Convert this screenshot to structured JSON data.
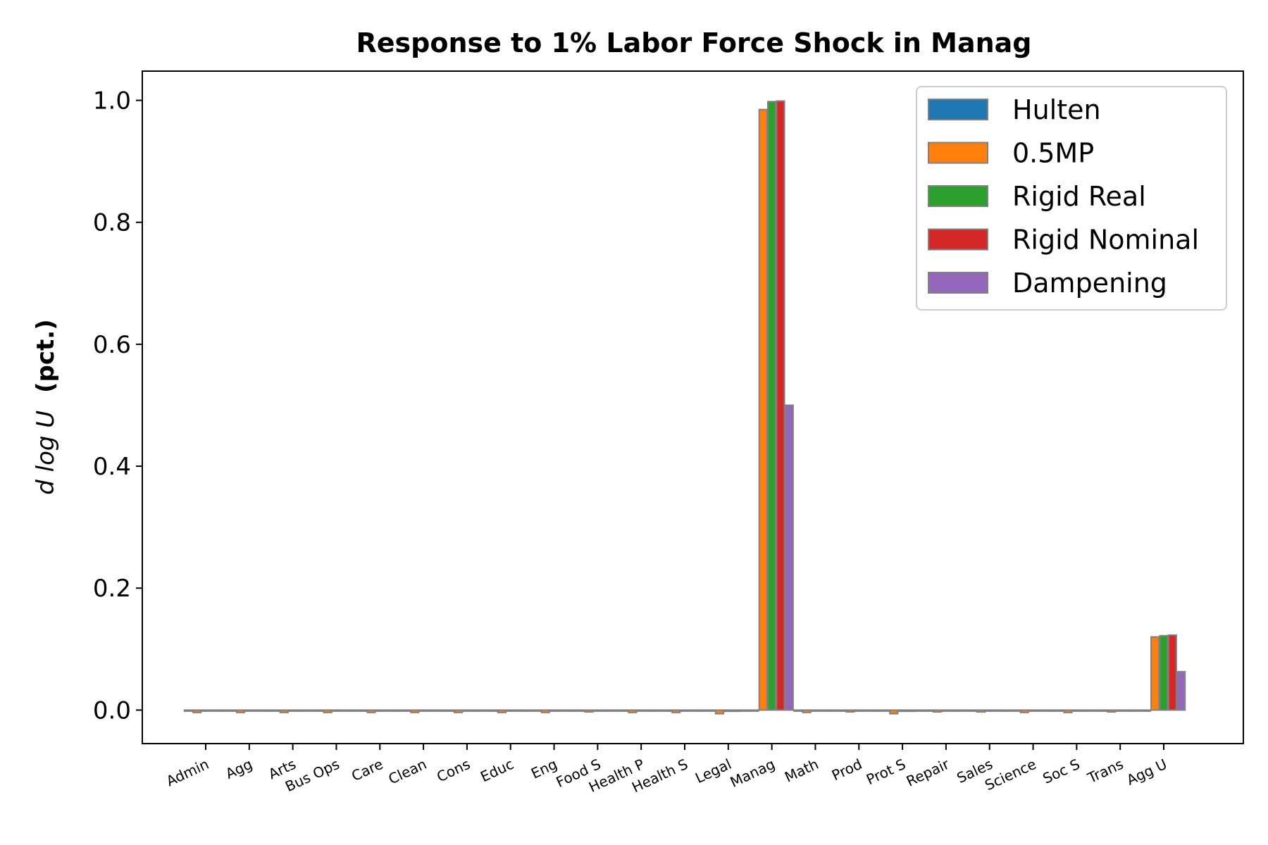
{
  "chart_data": {
    "type": "bar",
    "title": "Response to 1% Labor Force Shock in Manag",
    "ylabel_italic": "d log U",
    "ylabel_bold": "(pct.)",
    "xlabel": "",
    "ylim": [
      -0.055,
      1.048
    ],
    "yticks": [
      0.0,
      0.2,
      0.4,
      0.6,
      0.8,
      1.0
    ],
    "ytick_labels": [
      "0.0",
      "0.2",
      "0.4",
      "0.6",
      "0.8",
      "1.0"
    ],
    "grid": false,
    "legend_position": "top-right",
    "bar_edge_color": "#808080",
    "categories": [
      "Admin",
      "Agg",
      "Arts",
      "Bus Ops",
      "Care",
      "Clean",
      "Cons",
      "Educ",
      "Eng",
      "Food S",
      "Health P",
      "Health S",
      "Legal",
      "Manag",
      "Math",
      "Prod",
      "Prot S",
      "Repair",
      "Sales",
      "Science",
      "Soc S",
      "Trans",
      "Agg U"
    ],
    "series": [
      {
        "name": "Hulten",
        "color": "#1f77b4",
        "values": [
          0,
          0,
          0,
          0,
          0,
          0,
          0,
          0,
          0,
          0,
          0,
          0,
          0,
          0,
          0,
          0,
          0,
          0,
          0,
          0,
          0,
          0,
          0
        ]
      },
      {
        "name": "0.5MP",
        "color": "#ff7f0e",
        "values": [
          -0.004,
          -0.004,
          -0.004,
          -0.004,
          -0.004,
          -0.004,
          -0.004,
          -0.004,
          -0.004,
          -0.003,
          -0.004,
          -0.004,
          -0.006,
          0.985,
          -0.004,
          -0.003,
          -0.006,
          -0.003,
          -0.003,
          -0.004,
          -0.004,
          -0.003,
          0.12
        ]
      },
      {
        "name": "Rigid Real",
        "color": "#2ca02c",
        "values": [
          -0.001,
          -0.001,
          -0.001,
          -0.001,
          -0.001,
          -0.001,
          -0.001,
          -0.001,
          -0.001,
          -0.001,
          -0.001,
          -0.001,
          -0.002,
          0.998,
          -0.001,
          -0.001,
          -0.002,
          -0.001,
          -0.001,
          -0.001,
          -0.001,
          -0.001,
          0.122
        ]
      },
      {
        "name": "Rigid Nominal",
        "color": "#d62728",
        "values": [
          -0.001,
          -0.001,
          -0.001,
          -0.001,
          -0.001,
          -0.001,
          -0.001,
          -0.001,
          -0.001,
          -0.001,
          -0.001,
          -0.001,
          -0.002,
          0.999,
          -0.001,
          -0.001,
          -0.002,
          -0.001,
          -0.001,
          -0.001,
          -0.001,
          -0.001,
          0.123
        ]
      },
      {
        "name": "Dampening",
        "color": "#9467bd",
        "values": [
          0,
          0,
          0,
          0,
          0,
          0,
          0,
          0,
          0,
          0,
          0,
          0,
          -0.001,
          0.5,
          0,
          0,
          -0.001,
          0,
          0,
          0,
          0,
          0,
          0.063
        ]
      }
    ]
  }
}
